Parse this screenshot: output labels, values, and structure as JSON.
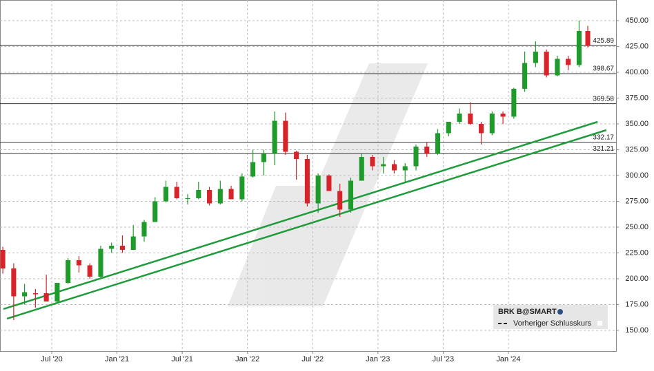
{
  "chart_data": {
    "type": "candlestick",
    "legend": {
      "symbol": "BRK B@SMART",
      "previous_close": "Vorheriger Schlusskurs"
    },
    "xlim": [
      1.24,
      57.9
    ],
    "ylim": [
      130,
      470
    ],
    "xticks": [
      {
        "value": 6,
        "label": "Jul '20"
      },
      {
        "value": 12,
        "label": "Jan '21"
      },
      {
        "value": 18,
        "label": "Jul '21"
      },
      {
        "value": 24,
        "label": "Jan '22"
      },
      {
        "value": 30,
        "label": "Jul '22"
      },
      {
        "value": 36,
        "label": "Jan '23"
      },
      {
        "value": 42,
        "label": "Jul '23"
      },
      {
        "value": 48,
        "label": "Jan '24"
      }
    ],
    "yticks": [
      {
        "value": 150,
        "label": "150.00"
      },
      {
        "value": 175,
        "label": "175.00"
      },
      {
        "value": 200,
        "label": "200.00"
      },
      {
        "value": 225,
        "label": "225.00"
      },
      {
        "value": 250,
        "label": "250.00"
      },
      {
        "value": 275,
        "label": "275.00"
      },
      {
        "value": 300,
        "label": "300.00"
      },
      {
        "value": 325,
        "label": "325.00"
      },
      {
        "value": 350,
        "label": "350.00"
      },
      {
        "value": 375,
        "label": "375.00"
      },
      {
        "value": 400,
        "label": "400.00"
      },
      {
        "value": 425,
        "label": "425.00"
      },
      {
        "value": 450,
        "label": "450.00"
      }
    ],
    "grid": true,
    "up_color": "#1e9b2a",
    "down_color": "#d8232a",
    "x": [
      1.5,
      2.5,
      3.5,
      4.5,
      5.5,
      6.5,
      7.5,
      8.5,
      9.5,
      10.5,
      11.5,
      12.5,
      13.5,
      14.5,
      15.5,
      16.5,
      17.5,
      18.5,
      19.5,
      20.5,
      21.5,
      22.5,
      23.5,
      24.5,
      25.5,
      26.5,
      27.5,
      28.5,
      29.5,
      30.5,
      31.5,
      32.5,
      33.5,
      34.5,
      35.5,
      36.5,
      37.5,
      38.5,
      39.5,
      40.5,
      41.5,
      42.5,
      43.5,
      44.5,
      45.5,
      46.5,
      47.5,
      48.5,
      49.5,
      50.5,
      51.5,
      52.5,
      53.5,
      54.5,
      55.3
    ],
    "open": [
      228,
      210,
      183,
      186,
      186,
      178,
      196,
      218,
      213,
      202,
      229,
      232,
      228,
      241,
      255,
      275,
      289,
      278,
      278,
      286,
      273,
      287,
      277,
      299,
      313,
      321,
      353,
      323,
      316,
      273,
      300,
      285,
      267,
      295,
      318,
      309,
      311,
      305,
      309,
      328,
      321,
      341,
      352,
      360,
      350,
      341,
      360,
      357,
      384,
      409,
      420,
      397,
      413,
      407,
      440
    ],
    "high": [
      231,
      215,
      195,
      190,
      204,
      196,
      220,
      222,
      215,
      232,
      235,
      242,
      252,
      257,
      279,
      295,
      294,
      282,
      294,
      289,
      295,
      290,
      302,
      325,
      325,
      362,
      361,
      324,
      320,
      302,
      301,
      292,
      298,
      321,
      320,
      318,
      315,
      312,
      330,
      332,
      345,
      352,
      365,
      371,
      352,
      362,
      362,
      385,
      420,
      430,
      422,
      416,
      416,
      450,
      445
    ],
    "low": [
      205,
      160,
      175,
      172,
      178,
      176,
      195,
      206,
      200,
      200,
      225,
      225,
      228,
      236,
      255,
      274,
      277,
      272,
      277,
      271,
      272,
      277,
      275,
      298,
      300,
      310,
      320,
      296,
      270,
      264,
      285,
      260,
      264,
      295,
      305,
      302,
      302,
      293,
      305,
      318,
      320,
      338,
      350,
      349,
      330,
      339,
      350,
      355,
      381,
      405,
      395,
      396,
      402,
      405,
      424
    ],
    "close": [
      210,
      183,
      187,
      185,
      178,
      196,
      218,
      213,
      202,
      229,
      232,
      228,
      241,
      255,
      275,
      289,
      278,
      278,
      286,
      273,
      287,
      277,
      299,
      313,
      321,
      353,
      323,
      316,
      273,
      300,
      285,
      267,
      295,
      318,
      309,
      311,
      305,
      309,
      328,
      321,
      341,
      352,
      360,
      350,
      341,
      360,
      357,
      384,
      409,
      420,
      397,
      413,
      407,
      440,
      425.89
    ],
    "levels": [
      {
        "value": 425.89,
        "label": "425.89"
      },
      {
        "value": 398.67,
        "label": "398.67"
      },
      {
        "value": 369.58,
        "label": "369.58"
      },
      {
        "value": 332.17,
        "label": "332.17"
      },
      {
        "value": 321.21,
        "label": "321.21"
      }
    ],
    "trendline_color": "#1e9b3a",
    "trendlines": [
      {
        "x": [
          1.56,
          56.2
        ],
        "y": [
          170.7,
          352
        ]
      },
      {
        "x": [
          1.87,
          57.0
        ],
        "y": [
          161.3,
          344
        ]
      }
    ]
  }
}
